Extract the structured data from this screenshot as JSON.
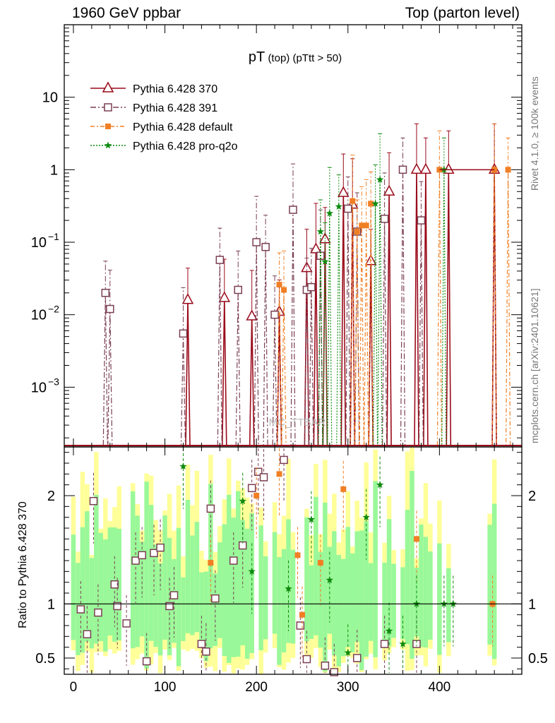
{
  "header": {
    "left_label": "1960 GeV ppbar",
    "right_label": "Top (parton level)"
  },
  "side_labels": {
    "rivet": "Rivet 4.1.0, ≥ 100k events",
    "mcplots": "mcplots.cern.ch [arXiv:2401.10621]"
  },
  "watermark": "MC_TTBAR",
  "colors": {
    "s370": "#9a0a1a",
    "s391": "#7a3f52",
    "default": "#f07f24",
    "proq2o": "#0f8a0f",
    "band_outer": "#ffff99",
    "band_inner": "#99f899"
  },
  "chart_data": {
    "type": "line",
    "title": {
      "main": "pT",
      "sub1": "(top)",
      "sub2": "(pTtt > 50)"
    },
    "xlabel": "",
    "ylabel": "",
    "xlim": [
      -10,
      490
    ],
    "ylim": [
      0.00015,
      100
    ],
    "yscale": "log",
    "xticks": [
      0,
      100,
      200,
      300,
      400
    ],
    "yticks": [
      {
        "value": 0.001,
        "label": "10",
        "exp": "−3"
      },
      {
        "value": 0.01,
        "label": "10",
        "exp": "−2"
      },
      {
        "value": 0.1,
        "label": "10",
        "exp": "−1"
      },
      {
        "value": 1,
        "label": "1",
        "exp": ""
      },
      {
        "value": 10,
        "label": "10",
        "exp": ""
      }
    ],
    "legend_position": "top-left",
    "series": [
      {
        "name": "Pythia 6.428 370",
        "key": "s370",
        "marker": "triangle-open",
        "dash": "",
        "x": [
          125,
          165,
          195,
          225,
          255,
          265,
          275,
          295,
          305,
          325,
          345,
          375,
          385,
          410,
          460
        ],
        "y": [
          0.016,
          0.017,
          0.0095,
          0.011,
          0.044,
          0.08,
          0.11,
          0.48,
          0.33,
          0.055,
          0.5,
          1.0,
          1.0,
          1.0,
          1.0
        ]
      },
      {
        "name": "Pythia 6.428 391",
        "key": "s391",
        "marker": "square-open",
        "dash": "8,3,2,3",
        "x": [
          35,
          40,
          120,
          160,
          180,
          200,
          210,
          220,
          240,
          255,
          260,
          270,
          300,
          310,
          340,
          360,
          380
        ],
        "y": [
          0.02,
          0.012,
          0.0055,
          0.057,
          0.022,
          0.1,
          0.086,
          0.01,
          0.28,
          0.022,
          0.024,
          0.065,
          0.29,
          0.14,
          0.21,
          1.0,
          0.2
        ]
      },
      {
        "name": "Pythia 6.428 default",
        "key": "default",
        "marker": "square-filled",
        "dash": "6,3,2,3",
        "x": [
          225,
          230,
          305,
          310,
          315,
          320,
          325,
          400,
          460,
          475
        ],
        "y": [
          0.026,
          0.022,
          0.37,
          0.14,
          0.17,
          0.17,
          0.34,
          1.0,
          1.0,
          1.0
        ]
      },
      {
        "name": "Pythia 6.428 pro-q2o",
        "key": "proq2o",
        "marker": "star",
        "dash": "2,2",
        "x": [
          270,
          275,
          280,
          290,
          330,
          335,
          405
        ],
        "y": [
          0.14,
          0.054,
          0.25,
          0.31,
          0.34,
          0.73,
          1.0
        ]
      }
    ],
    "ratio_panel": {
      "ylabel": "Ratio to Pythia 6.428 370",
      "ylim": [
        0.35,
        2.45
      ],
      "yticks": [
        {
          "value": 0.5,
          "label": "0.5"
        },
        {
          "value": 1,
          "label": "1"
        },
        {
          "value": 2,
          "label": "2"
        }
      ],
      "reference": 1,
      "series": [
        {
          "key": "s391",
          "marker": "square-open",
          "x": [
            8,
            15,
            22,
            27,
            45,
            48,
            58,
            68,
            75,
            80,
            88,
            95,
            105,
            110,
            140,
            145,
            150,
            155,
            175,
            185,
            195,
            202,
            208,
            230,
            248,
            255,
            275,
            285,
            310,
            340,
            375
          ],
          "y": [
            0.95,
            0.72,
            1.95,
            0.92,
            1.18,
            0.98,
            0.82,
            1.4,
            1.45,
            0.47,
            1.47,
            1.52,
            0.98,
            1.08,
            0.63,
            0.56,
            1.88,
            1.05,
            1.4,
            1.54,
            2.07,
            2.22,
            2.17,
            2.33,
            0.8,
            0.49,
            0.43,
            0.37,
            0.5,
            0.63,
            0.63
          ]
        },
        {
          "key": "default",
          "marker": "square-filled",
          "x": [
            150,
            200,
            225,
            245,
            250,
            270,
            295,
            375,
            458
          ],
          "y": [
            1.38,
            2.0,
            2.2,
            1.45,
            0.9,
            1.38,
            2.06,
            1.6,
            1.0
          ]
        },
        {
          "key": "proq2o",
          "marker": "star",
          "x": [
            120,
            185,
            195,
            235,
            260,
            280,
            300,
            320,
            335,
            345,
            360,
            375,
            405,
            415
          ],
          "y": [
            2.27,
            1.95,
            1.3,
            1.14,
            1.78,
            1.22,
            0.55,
            1.8,
            2.1,
            0.75,
            0.63,
            1.0,
            1.0,
            1.0
          ]
        }
      ]
    }
  }
}
